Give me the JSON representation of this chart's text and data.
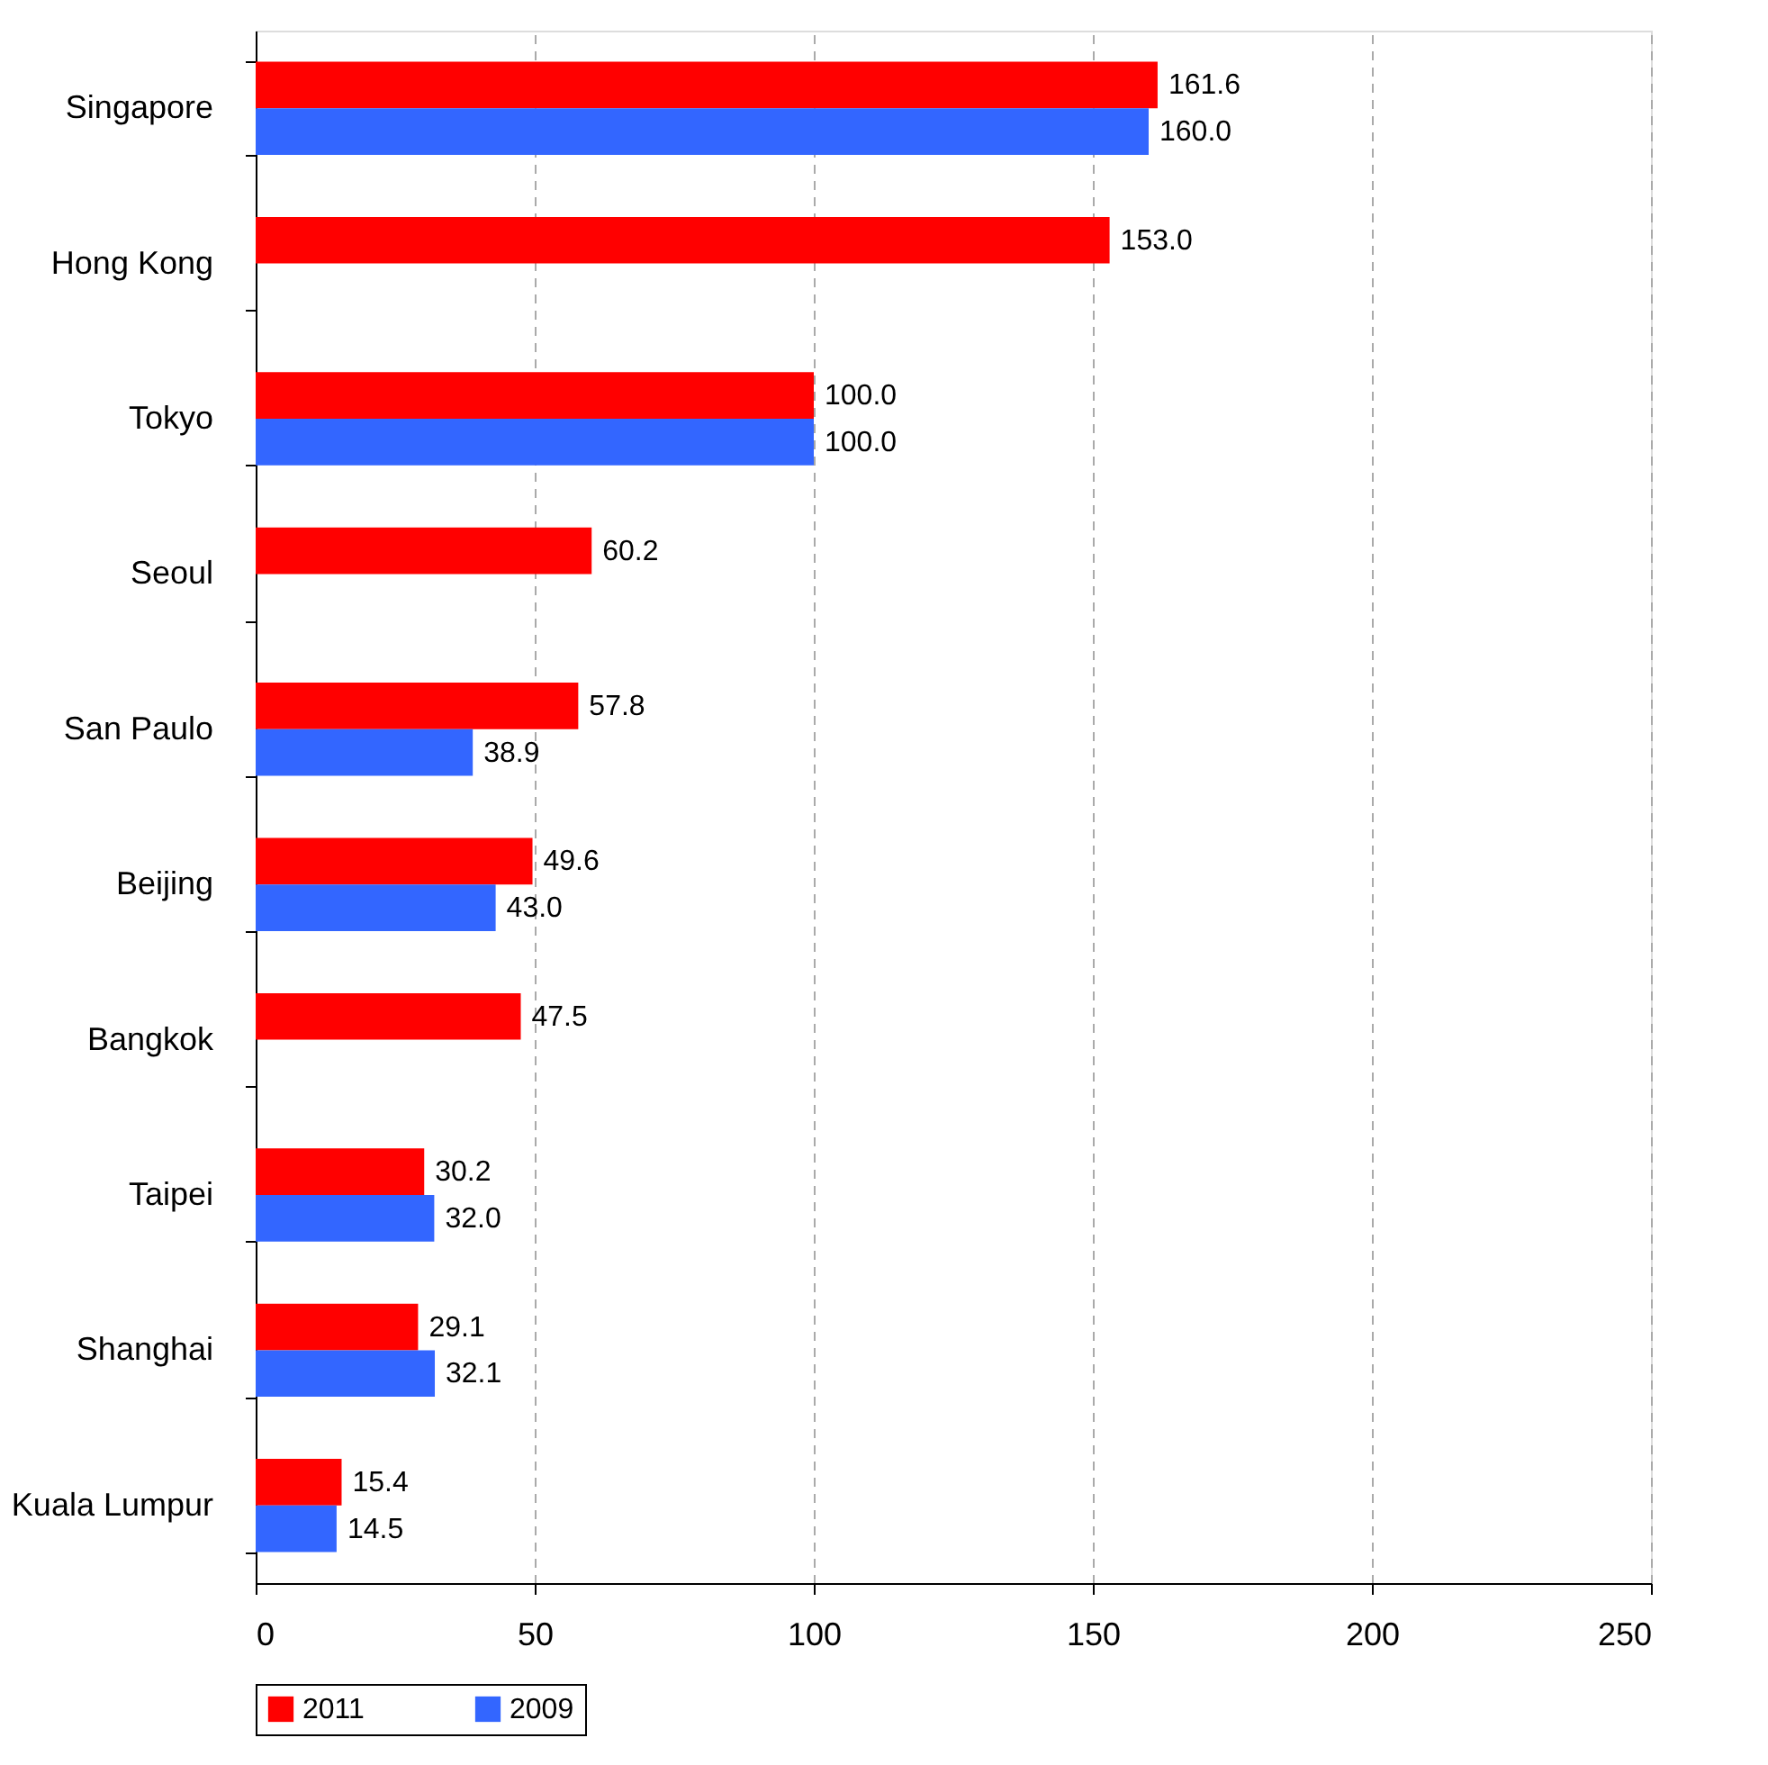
{
  "chart_data": {
    "type": "bar",
    "orientation": "horizontal",
    "categories": [
      "Singapore",
      "Hong Kong",
      "Tokyo",
      "Seoul",
      "San Paulo",
      "Beijing",
      "Bangkok",
      "Taipei",
      "Shanghai",
      "Kuala Lumpur"
    ],
    "series": [
      {
        "name": "2011",
        "color": "#ff0000",
        "values": [
          161.6,
          153.0,
          100.0,
          60.2,
          57.8,
          49.6,
          47.5,
          30.2,
          29.1,
          15.4
        ],
        "value_labels": [
          "161.6",
          "153.0",
          "100.0",
          "60.2",
          "57.8",
          "49.6",
          "47.5",
          "30.2",
          "29.1",
          "15.4"
        ]
      },
      {
        "name": "2009",
        "color": "#3366ff",
        "values": [
          160.0,
          null,
          100.0,
          null,
          38.9,
          43.0,
          null,
          32.0,
          32.1,
          14.5
        ],
        "value_labels": [
          "160.0",
          null,
          "100.0",
          null,
          "38.9",
          "43.0",
          null,
          "32.0",
          "32.1",
          "14.5"
        ]
      }
    ],
    "xlim": [
      0,
      250
    ],
    "xticks": [
      0,
      50,
      100,
      150,
      200,
      250
    ],
    "grid": "x",
    "legend": "bottom"
  }
}
